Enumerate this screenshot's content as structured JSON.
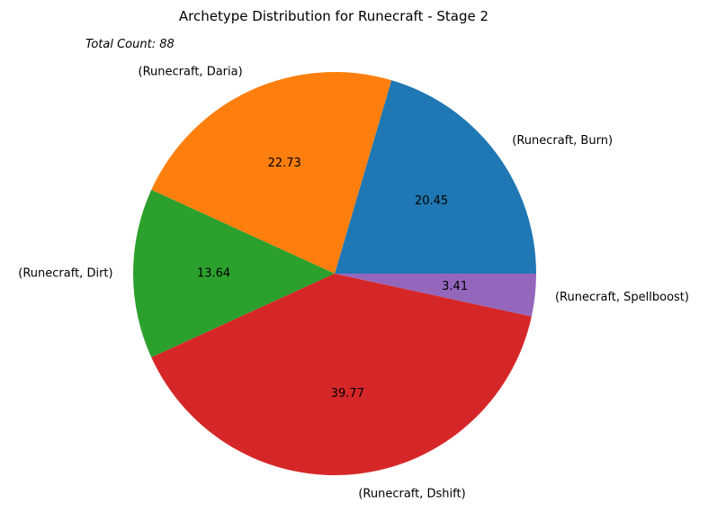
{
  "chart_data": {
    "type": "pie",
    "title": "Archetype Distribution for Runecraft - Stage 2",
    "annotation": "Total Count: 88",
    "slices": [
      {
        "label": "(Runecraft, Burn)",
        "value": 20.45,
        "pct_text": "20.45",
        "color": "#1f77b4"
      },
      {
        "label": "(Runecraft, Daria)",
        "value": 22.73,
        "pct_text": "22.73",
        "color": "#ff7f0e"
      },
      {
        "label": "(Runecraft, Dirt)",
        "value": 13.64,
        "pct_text": "13.64",
        "color": "#2ca02c"
      },
      {
        "label": "(Runecraft, Dshift)",
        "value": 39.77,
        "pct_text": "39.77",
        "color": "#d62728"
      },
      {
        "label": "(Runecraft, Spellboost)",
        "value": 3.41,
        "pct_text": "3.41",
        "color": "#9467bd"
      }
    ]
  }
}
